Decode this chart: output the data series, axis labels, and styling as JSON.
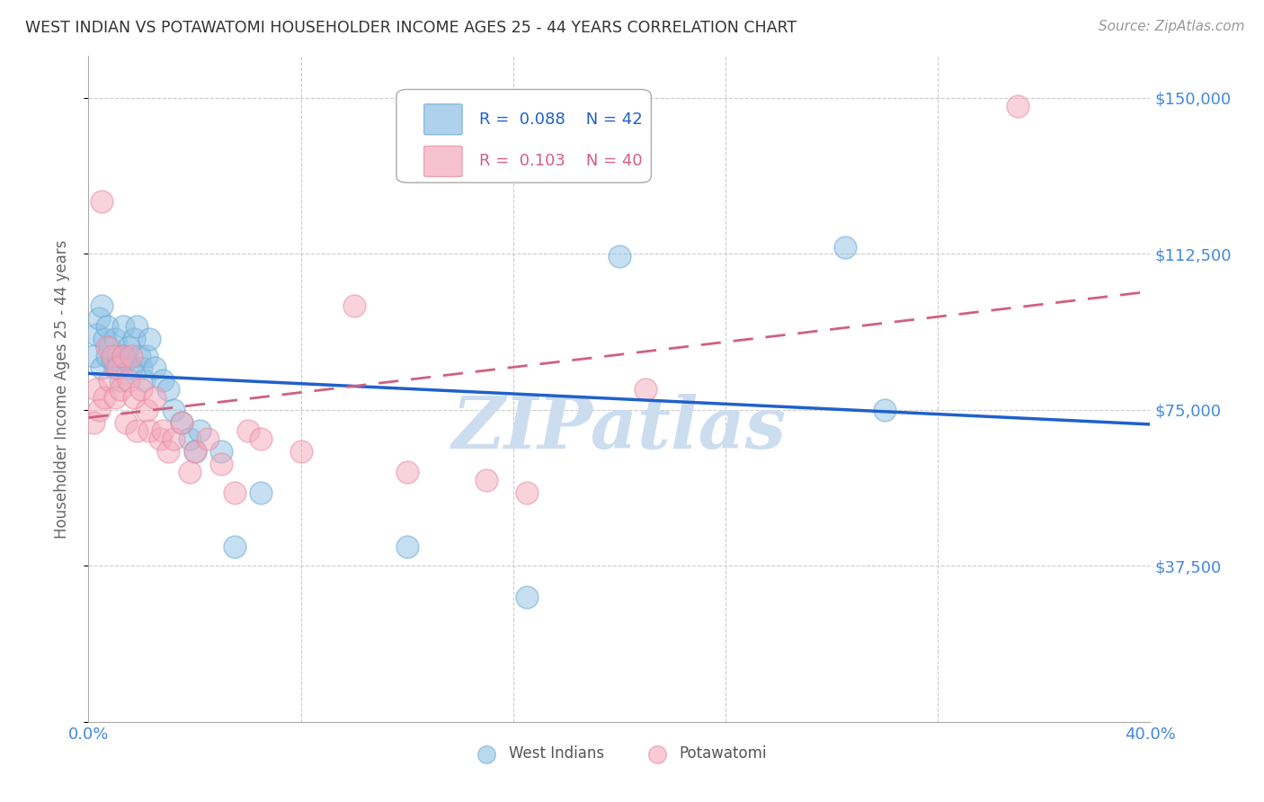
{
  "title": "WEST INDIAN VS POTAWATOMI HOUSEHOLDER INCOME AGES 25 - 44 YEARS CORRELATION CHART",
  "source": "Source: ZipAtlas.com",
  "ylabel": "Householder Income Ages 25 - 44 years",
  "xlim": [
    0.0,
    0.4
  ],
  "ylim": [
    0,
    160000
  ],
  "yticks": [
    0,
    37500,
    75000,
    112500,
    150000
  ],
  "ytick_labels": [
    "",
    "$37,500",
    "$75,000",
    "$112,500",
    "$150,000"
  ],
  "xticks": [
    0.0,
    0.08,
    0.16,
    0.24,
    0.32,
    0.4
  ],
  "xtick_labels": [
    "0.0%",
    "",
    "",
    "",
    "",
    "40.0%"
  ],
  "legend_r1": "0.088",
  "legend_n1": "42",
  "legend_r2": "0.103",
  "legend_n2": "40",
  "west_indian_color": "#8ec0e4",
  "potawatomi_color": "#f5a8bb",
  "west_indian_edge_color": "#6aaad4",
  "potawatomi_edge_color": "#e88aa0",
  "west_indian_line_color": "#2060cc",
  "potawatomi_line_color": "#d06080",
  "background_color": "#ffffff",
  "grid_color": "#cccccc",
  "title_color": "#333333",
  "axis_label_color": "#666666",
  "right_tick_color": "#4488dd",
  "watermark_color": "#ccddf0",
  "west_indian_x": [
    0.002,
    0.003,
    0.004,
    0.005,
    0.005,
    0.006,
    0.007,
    0.007,
    0.008,
    0.009,
    0.01,
    0.01,
    0.011,
    0.012,
    0.013,
    0.013,
    0.014,
    0.015,
    0.016,
    0.017,
    0.018,
    0.019,
    0.02,
    0.021,
    0.022,
    0.023,
    0.025,
    0.028,
    0.03,
    0.032,
    0.035,
    0.038,
    0.04,
    0.042,
    0.05,
    0.055,
    0.065,
    0.12,
    0.165,
    0.2,
    0.285,
    0.3
  ],
  "west_indian_y": [
    88000,
    93000,
    97000,
    85000,
    100000,
    92000,
    88000,
    95000,
    90000,
    87000,
    85000,
    92000,
    88000,
    82000,
    88000,
    95000,
    87000,
    90000,
    85000,
    92000,
    95000,
    88000,
    85000,
    82000,
    88000,
    92000,
    85000,
    82000,
    80000,
    75000,
    72000,
    68000,
    65000,
    70000,
    65000,
    42000,
    55000,
    42000,
    30000,
    112000,
    114000,
    75000
  ],
  "potawatomi_x": [
    0.002,
    0.003,
    0.004,
    0.005,
    0.006,
    0.007,
    0.008,
    0.009,
    0.01,
    0.011,
    0.012,
    0.013,
    0.014,
    0.015,
    0.016,
    0.017,
    0.018,
    0.02,
    0.022,
    0.023,
    0.025,
    0.027,
    0.028,
    0.03,
    0.032,
    0.035,
    0.038,
    0.04,
    0.045,
    0.05,
    0.055,
    0.06,
    0.065,
    0.08,
    0.1,
    0.12,
    0.15,
    0.165,
    0.21,
    0.35
  ],
  "potawatomi_y": [
    72000,
    80000,
    75000,
    125000,
    78000,
    90000,
    82000,
    88000,
    78000,
    85000,
    80000,
    88000,
    72000,
    82000,
    88000,
    78000,
    70000,
    80000,
    75000,
    70000,
    78000,
    68000,
    70000,
    65000,
    68000,
    72000,
    60000,
    65000,
    68000,
    62000,
    55000,
    70000,
    68000,
    65000,
    100000,
    60000,
    58000,
    55000,
    80000,
    148000
  ]
}
